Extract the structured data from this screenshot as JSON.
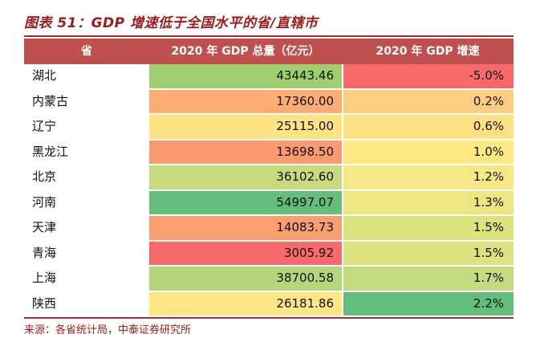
{
  "title": "图表 51：GDP 增速低于全国水平的省/直辖市",
  "chart_data": {
    "type": "table",
    "headers": [
      "省",
      "2020 年 GDP 总量（亿元）",
      "2020 年 GDP 增速"
    ],
    "rows": [
      {
        "province": "湖北",
        "gdp": "43443.46",
        "growth": "-5.0%",
        "gdp_color": "#9fcf6f",
        "growth_color": "#f8696b"
      },
      {
        "province": "内蒙古",
        "gdp": "17360.00",
        "growth": "0.2%",
        "gdp_color": "#fcad73",
        "growth_color": "#fdce7f"
      },
      {
        "province": "辽宁",
        "gdp": "25115.00",
        "growth": "0.6%",
        "gdp_color": "#fee383",
        "growth_color": "#fee182"
      },
      {
        "province": "黑龙江",
        "gdp": "13698.50",
        "growth": "1.0%",
        "gdp_color": "#fb9a70",
        "growth_color": "#fee983"
      },
      {
        "province": "北京",
        "gdp": "36102.60",
        "growth": "1.2%",
        "gdp_color": "#c7da7d",
        "growth_color": "#f6e884"
      },
      {
        "province": "河南",
        "gdp": "54997.07",
        "growth": "1.3%",
        "gdp_color": "#63be7b",
        "growth_color": "#eee683"
      },
      {
        "province": "天津",
        "gdp": "14083.73",
        "growth": "1.5%",
        "gdp_color": "#fb9f71",
        "growth_color": "#dde281"
      },
      {
        "province": "青海",
        "gdp": "3005.92",
        "growth": "1.5%",
        "gdp_color": "#f8696b",
        "growth_color": "#dde281"
      },
      {
        "province": "上海",
        "gdp": "38700.58",
        "growth": "1.7%",
        "gdp_color": "#b5d57a",
        "growth_color": "#c4da7e"
      },
      {
        "province": "陕西",
        "gdp": "26181.86",
        "growth": "2.2%",
        "gdp_color": "#fde683",
        "growth_color": "#63be7b"
      }
    ]
  },
  "source": "来源：各省统计局，中泰证券研究所"
}
